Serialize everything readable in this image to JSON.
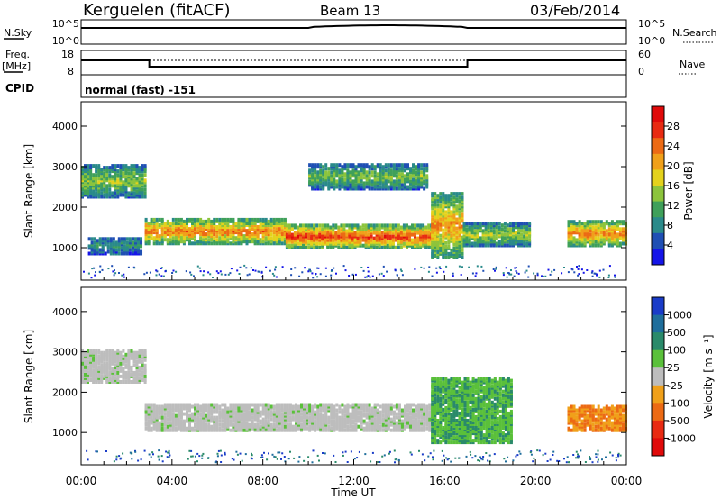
{
  "header": {
    "station": "Kerguelen (fitACF)",
    "beam": "Beam 13",
    "date": "03/Feb/2014"
  },
  "nsky_panel": {
    "left_label": "N.Sky",
    "left_ticks": [
      "10^5",
      "10^0"
    ],
    "right_ticks": [
      "10^5",
      "10^0"
    ],
    "right_label": "N.Search"
  },
  "freq_panel": {
    "left_label_1": "Freq.",
    "left_label_2": "[MHz]",
    "left_ticks": [
      "18",
      "8"
    ],
    "right_ticks": [
      "60",
      "0"
    ],
    "right_label": "Nave"
  },
  "cpid": {
    "label": "CPID",
    "value": "normal (fast) -151"
  },
  "chart_data": [
    {
      "type": "heatmap",
      "quantity": "Power",
      "ylabel": "Slant Range [km]",
      "yticks": [
        "1000",
        "2000",
        "3000",
        "4000"
      ],
      "ylim": [
        200,
        4600
      ],
      "xlim_hours": [
        0,
        24
      ],
      "colorbar": {
        "label": "Power [dB]",
        "ticks": [
          "4",
          "8",
          "12",
          "16",
          "20",
          "24",
          "28"
        ],
        "range": [
          0,
          32
        ],
        "colors": [
          "#1515e8",
          "#1f4fb4",
          "#2a8a8a",
          "#3fa05a",
          "#8cc43c",
          "#e4d21c",
          "#f0a01a",
          "#ec6a14",
          "#e82a12",
          "#e00a0a"
        ]
      },
      "echo_bands": [
        {
          "start_h": 0.0,
          "end_h": 2.8,
          "ranges_km": [
            2300,
            3100
          ],
          "level_db": 15
        },
        {
          "start_h": 0.3,
          "end_h": 2.6,
          "ranges_km": [
            900,
            1300
          ],
          "level_db": 10
        },
        {
          "start_h": 2.8,
          "end_h": 9.0,
          "ranges_km": [
            1150,
            1750
          ],
          "level_db": 24
        },
        {
          "start_h": 9.0,
          "end_h": 15.6,
          "ranges_km": [
            1050,
            1600
          ],
          "level_db": 27
        },
        {
          "start_h": 10.0,
          "end_h": 15.2,
          "ranges_km": [
            2500,
            3100
          ],
          "level_db": 14
        },
        {
          "start_h": 15.4,
          "end_h": 16.8,
          "ranges_km": [
            800,
            2400
          ],
          "level_db": 22
        },
        {
          "start_h": 16.8,
          "end_h": 19.8,
          "ranges_km": [
            1100,
            1650
          ],
          "level_db": 16
        },
        {
          "start_h": 21.4,
          "end_h": 24.0,
          "ranges_km": [
            1100,
            1700
          ],
          "level_db": 24
        }
      ]
    },
    {
      "type": "heatmap",
      "quantity": "Velocity",
      "ylabel": "Slant Range [km]",
      "yticks": [
        "1000",
        "2000",
        "3000",
        "4000"
      ],
      "ylim": [
        200,
        4600
      ],
      "xlim_hours": [
        0,
        24
      ],
      "xlabel": "Time UT",
      "xticks": [
        "00:00",
        "04:00",
        "08:00",
        "12:00",
        "16:00",
        "20:00",
        "00:00"
      ],
      "colorbar": {
        "label": "Velocity [m s⁻¹]",
        "ticks": [
          "1000",
          "500",
          "100",
          "25",
          "-25",
          "-100",
          "-500",
          "-1000"
        ],
        "colors": [
          "#1a3cc8",
          "#1f6e9c",
          "#2a8a6a",
          "#5ac03a",
          "#bdbdbd",
          "#f0a01a",
          "#ec6a14",
          "#e82a12",
          "#e00a0a"
        ]
      },
      "echo_bands": [
        {
          "start_h": 0.0,
          "end_h": 2.8,
          "ranges_km": [
            2300,
            3100
          ],
          "velocity": 0
        },
        {
          "start_h": 2.8,
          "end_h": 15.6,
          "ranges_km": [
            1100,
            1750
          ],
          "velocity": 0
        },
        {
          "start_h": 15.4,
          "end_h": 19.0,
          "ranges_km": [
            800,
            2400
          ],
          "velocity": 80
        },
        {
          "start_h": 21.4,
          "end_h": 24.0,
          "ranges_km": [
            1100,
            1700
          ],
          "velocity": -300
        }
      ]
    }
  ]
}
